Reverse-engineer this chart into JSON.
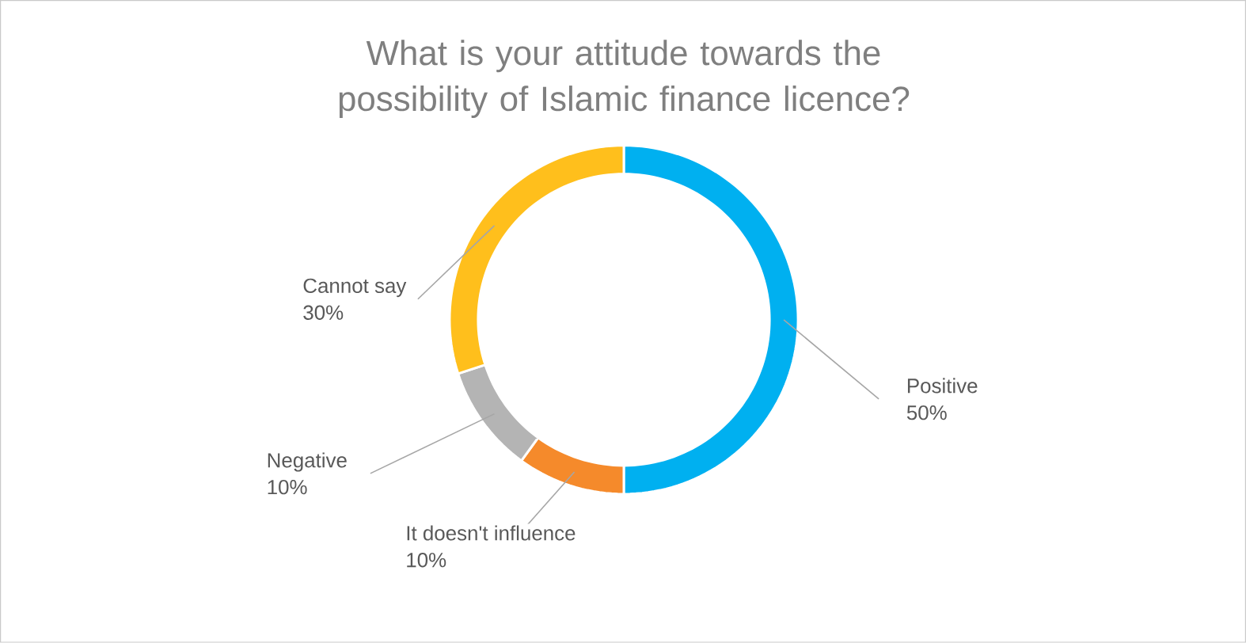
{
  "chart_data": {
    "type": "donut",
    "title": "What is your attitude towards the possibility of Islamic finance licence?",
    "categories": [
      "Positive",
      "It doesn't influence",
      "Negative",
      "Cannot say"
    ],
    "values": [
      50,
      10,
      10,
      30
    ],
    "value_labels": [
      "50%",
      "10%",
      "10%",
      "30%"
    ],
    "colors": [
      "#00b0f0",
      "#f58a2b",
      "#b4b4b4",
      "#ffbf1c"
    ]
  }
}
